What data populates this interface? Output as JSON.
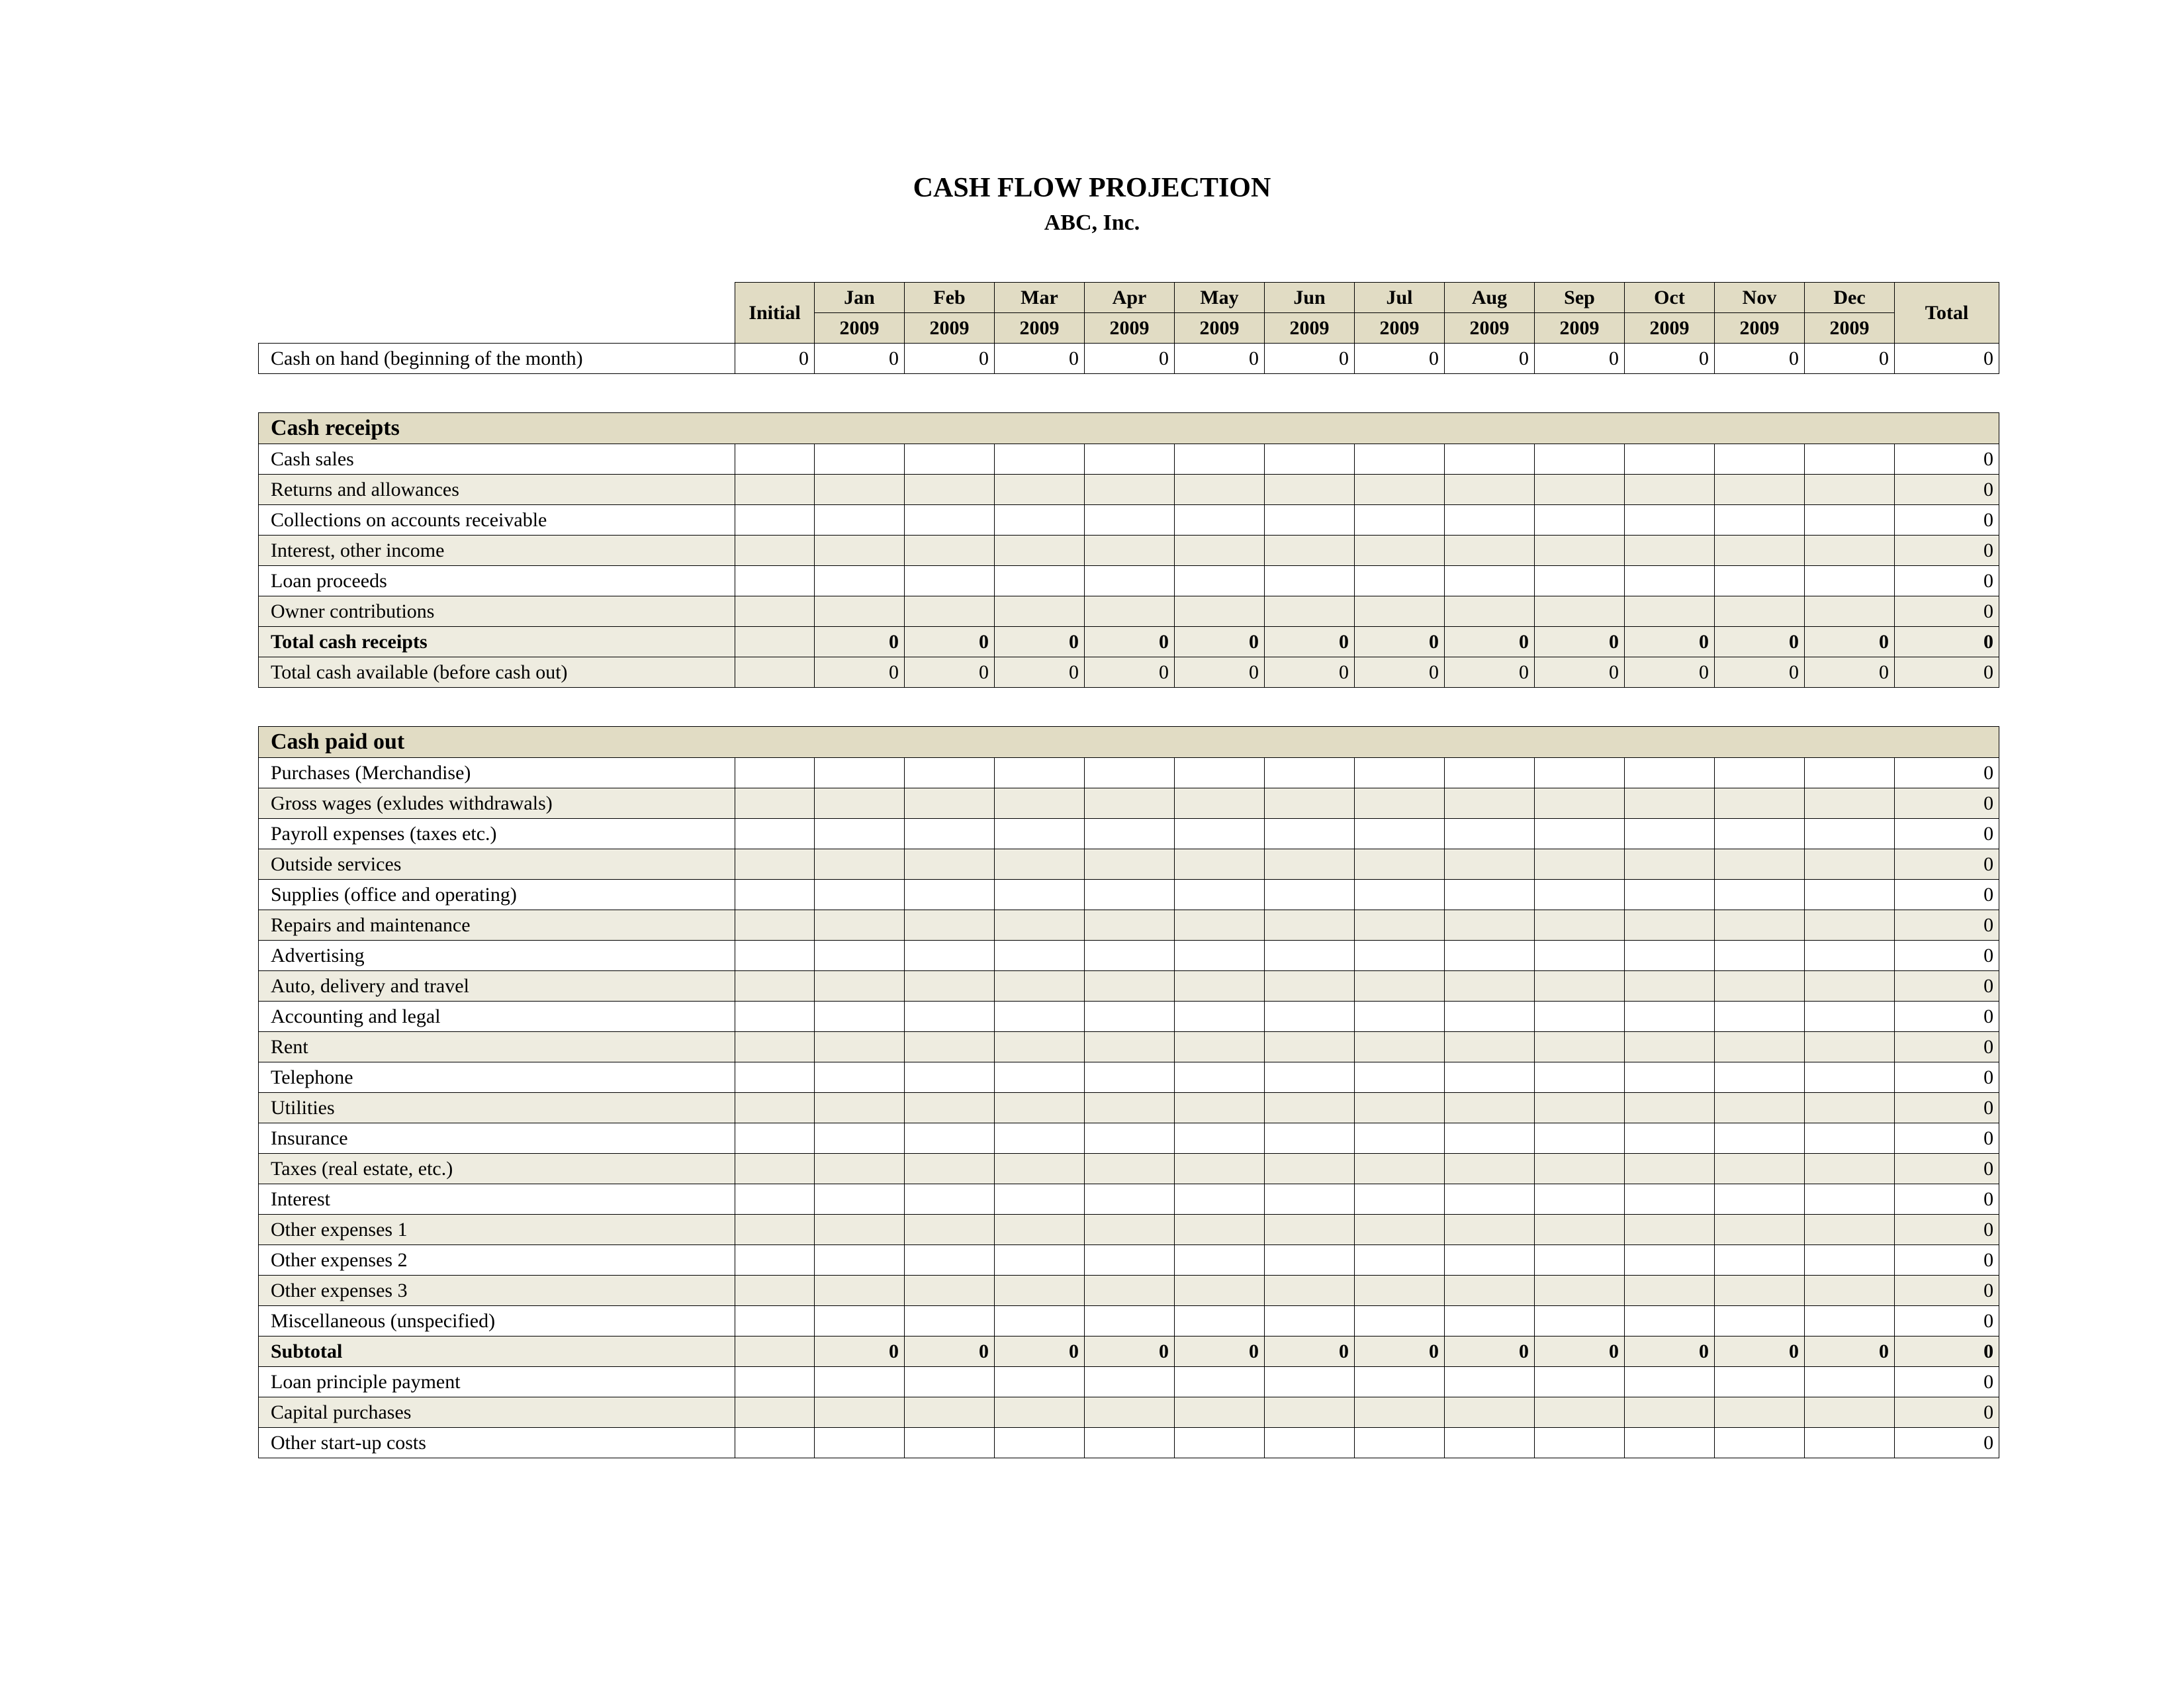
{
  "title": "CASH FLOW PROJECTION",
  "company": "ABC, Inc.",
  "colors": {
    "header_bg": "#e1dcc4",
    "alt_row_bg": "#eeece0",
    "border": "#000000",
    "text": "#000000",
    "page_bg": "#ffffff"
  },
  "columns": {
    "initial": "Initial",
    "months": [
      "Jan 2009",
      "Feb 2009",
      "Mar 2009",
      "Apr 2009",
      "May 2009",
      "Jun 2009",
      "Jul 2009",
      "Aug 2009",
      "Sep 2009",
      "Oct 2009",
      "Nov 2009",
      "Dec 2009"
    ],
    "total": "Total"
  },
  "cash_on_hand": {
    "label": "Cash on hand (beginning of the month)",
    "initial": "0",
    "months": [
      "0",
      "0",
      "0",
      "0",
      "0",
      "0",
      "0",
      "0",
      "0",
      "0",
      "0",
      "0"
    ],
    "total": "0"
  },
  "receipts": {
    "header": "Cash receipts",
    "rows": [
      {
        "label": "Cash sales",
        "total": "0"
      },
      {
        "label": "Returns and allowances",
        "total": "0"
      },
      {
        "label": "Collections on accounts receivable",
        "total": "0"
      },
      {
        "label": "Interest, other income",
        "total": "0"
      },
      {
        "label": "Loan proceeds",
        "total": "0"
      },
      {
        "label": "Owner contributions",
        "total": "0"
      }
    ],
    "total_receipts": {
      "label": "Total cash receipts",
      "months": [
        "0",
        "0",
        "0",
        "0",
        "0",
        "0",
        "0",
        "0",
        "0",
        "0",
        "0",
        "0"
      ],
      "total": "0"
    },
    "total_available": {
      "label": "Total cash available (before cash out)",
      "months": [
        "0",
        "0",
        "0",
        "0",
        "0",
        "0",
        "0",
        "0",
        "0",
        "0",
        "0",
        "0"
      ],
      "total": "0"
    }
  },
  "paid_out": {
    "header": "Cash paid out",
    "rows": [
      {
        "label": "Purchases (Merchandise)",
        "total": "0"
      },
      {
        "label": "Gross wages (exludes withdrawals)",
        "total": "0"
      },
      {
        "label": "Payroll expenses (taxes etc.)",
        "total": "0"
      },
      {
        "label": "Outside services",
        "total": "0"
      },
      {
        "label": "Supplies (office and operating)",
        "total": "0"
      },
      {
        "label": "Repairs and maintenance",
        "total": "0"
      },
      {
        "label": "Advertising",
        "total": "0"
      },
      {
        "label": "Auto, delivery and travel",
        "total": "0"
      },
      {
        "label": "Accounting and legal",
        "total": "0"
      },
      {
        "label": "Rent",
        "total": "0"
      },
      {
        "label": "Telephone",
        "total": "0"
      },
      {
        "label": "Utilities",
        "total": "0"
      },
      {
        "label": "Insurance",
        "total": "0"
      },
      {
        "label": "Taxes (real estate, etc.)",
        "total": "0"
      },
      {
        "label": "Interest",
        "total": "0"
      },
      {
        "label": "Other expenses 1",
        "total": "0"
      },
      {
        "label": "Other expenses 2",
        "total": "0"
      },
      {
        "label": "Other expenses 3",
        "total": "0"
      },
      {
        "label": "Miscellaneous (unspecified)",
        "total": "0"
      }
    ],
    "subtotal": {
      "label": "Subtotal",
      "months": [
        "0",
        "0",
        "0",
        "0",
        "0",
        "0",
        "0",
        "0",
        "0",
        "0",
        "0",
        "0"
      ],
      "total": "0"
    },
    "after_rows": [
      {
        "label": "Loan principle payment",
        "total": "0"
      },
      {
        "label": "Capital purchases",
        "total": "0"
      },
      {
        "label": "Other start-up costs",
        "total": "0"
      }
    ]
  }
}
